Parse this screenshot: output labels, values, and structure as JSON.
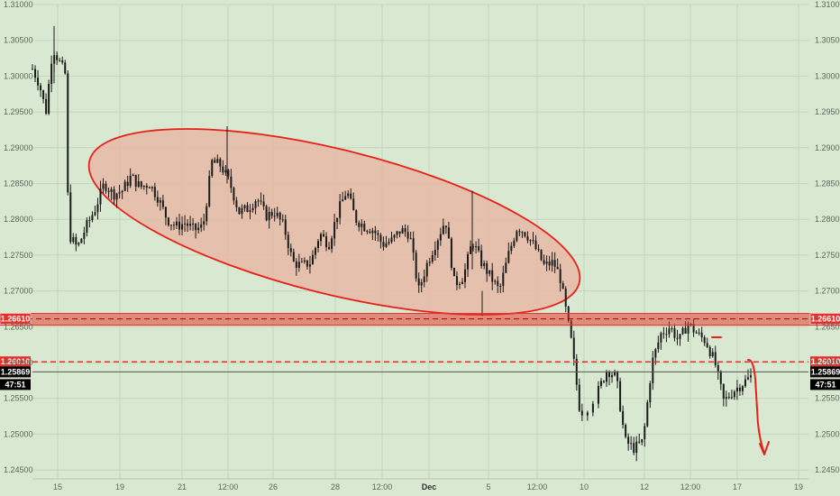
{
  "chart_data": {
    "type": "candlestick",
    "ylim": [
      1.245,
      1.31
    ],
    "y_ticks": [
      "1.31000",
      "1.30500",
      "1.30000",
      "1.29500",
      "1.29000",
      "1.28500",
      "1.28000",
      "1.27500",
      "1.27000",
      "1.26500",
      "1.26000",
      "1.25500",
      "1.25000",
      "1.24500"
    ],
    "x_ticks": [
      "15",
      "19",
      "21",
      "12:00",
      "26",
      "28",
      "12:00",
      "Dec",
      "5",
      "12:00",
      "10",
      "12",
      "12:00",
      "17",
      "19"
    ],
    "x_ticks_bold": [
      "Dec"
    ],
    "grid": true,
    "colors": {
      "background": "#d8e8d1",
      "candle": "#1a1a1a",
      "zone": "#e8302a",
      "ellipse_fill": "#e8b8a6",
      "annotation": "#e8201a",
      "price_badge": "#000000"
    },
    "levels": [
      {
        "label": "1.26610",
        "value": 1.2661,
        "style": "zone"
      },
      {
        "label": "1.26010",
        "value": 1.2601,
        "style": "dashed"
      },
      {
        "label": "1.25869",
        "value": 1.25869,
        "style": "current"
      }
    ],
    "countdown": "47:51",
    "price_path": [
      [
        0,
        1.301
      ],
      [
        3,
        1.299
      ],
      [
        6,
        1.295
      ],
      [
        9,
        1.304
      ],
      [
        12,
        1.302
      ],
      [
        15,
        1.3
      ],
      [
        16,
        1.278
      ],
      [
        20,
        1.276
      ],
      [
        24,
        1.279
      ],
      [
        28,
        1.2815
      ],
      [
        32,
        1.285
      ],
      [
        36,
        1.2835
      ],
      [
        40,
        1.284
      ],
      [
        44,
        1.286
      ],
      [
        48,
        1.2845
      ],
      [
        52,
        1.285
      ],
      [
        56,
        1.283
      ],
      [
        60,
        1.28
      ],
      [
        64,
        1.279
      ],
      [
        68,
        1.2795
      ],
      [
        72,
        1.2785
      ],
      [
        76,
        1.279
      ],
      [
        80,
        1.288
      ],
      [
        84,
        1.2875
      ],
      [
        88,
        1.285
      ],
      [
        92,
        1.281
      ],
      [
        96,
        1.2815
      ],
      [
        100,
        1.283
      ],
      [
        104,
        1.2805
      ],
      [
        108,
        1.281
      ],
      [
        112,
        1.279
      ],
      [
        116,
        1.274
      ],
      [
        120,
        1.2735
      ],
      [
        124,
        1.274
      ],
      [
        128,
        1.278
      ],
      [
        132,
        1.2765
      ],
      [
        136,
        1.281
      ],
      [
        140,
        1.284
      ],
      [
        144,
        1.28
      ],
      [
        148,
        1.279
      ],
      [
        152,
        1.2785
      ],
      [
        156,
        1.2765
      ],
      [
        160,
        1.277
      ],
      [
        164,
        1.2785
      ],
      [
        168,
        1.278
      ],
      [
        172,
        1.27
      ],
      [
        176,
        1.274
      ],
      [
        180,
        1.277
      ],
      [
        184,
        1.28
      ],
      [
        188,
        1.271
      ],
      [
        192,
        1.272
      ],
      [
        196,
        1.277
      ],
      [
        200,
        1.274
      ],
      [
        204,
        1.272
      ],
      [
        208,
        1.27
      ],
      [
        212,
        1.275
      ],
      [
        216,
        1.279
      ],
      [
        220,
        1.278
      ],
      [
        224,
        1.276
      ],
      [
        228,
        1.2735
      ],
      [
        232,
        1.274
      ],
      [
        235,
        1.272
      ],
      [
        240,
        1.263
      ],
      [
        244,
        1.253
      ],
      [
        248,
        1.254
      ],
      [
        252,
        1.256
      ],
      [
        256,
        1.259
      ],
      [
        260,
        1.258
      ],
      [
        264,
        1.249
      ],
      [
        268,
        1.248
      ],
      [
        272,
        1.249
      ],
      [
        276,
        1.26
      ],
      [
        280,
        1.264
      ],
      [
        284,
        1.265
      ],
      [
        288,
        1.263
      ],
      [
        292,
        1.2655
      ],
      [
        296,
        1.264
      ],
      [
        300,
        1.263
      ],
      [
        304,
        1.26
      ],
      [
        308,
        1.2545
      ],
      [
        312,
        1.256
      ],
      [
        316,
        1.257
      ],
      [
        320,
        1.258
      ]
    ],
    "annotations": [
      {
        "type": "ellipse",
        "desc": "consolidation range"
      },
      {
        "type": "arrow",
        "desc": "projected move down"
      }
    ]
  }
}
